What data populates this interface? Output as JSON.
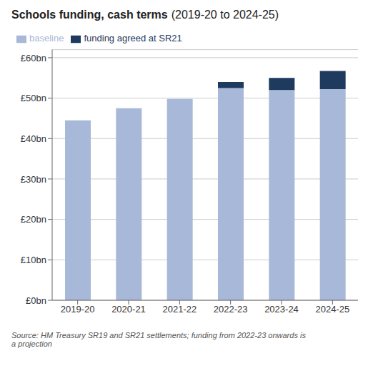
{
  "chart_data": {
    "type": "bar",
    "title": "Schools funding, cash terms",
    "subtitle": "(2019-20 to 2024-25)",
    "categories": [
      "2019-20",
      "2020-21",
      "2021-22",
      "2022-23",
      "2023-24",
      "2024-25"
    ],
    "series": [
      {
        "name": "baseline",
        "color": "#a8b8d8",
        "values": [
          44.5,
          47.5,
          49.8,
          52.5,
          52.0,
          52.2
        ]
      },
      {
        "name": "funding agreed at SR21",
        "color": "#1e3a5f",
        "values": [
          0,
          0,
          0,
          1.5,
          3.0,
          4.5
        ]
      }
    ],
    "stacked": true,
    "ylim": [
      0,
      62
    ],
    "yticks": [
      {
        "value": 0,
        "label": "£0bn"
      },
      {
        "value": 10,
        "label": "£10bn"
      },
      {
        "value": 20,
        "label": "£20bn"
      },
      {
        "value": 30,
        "label": "£30bn"
      },
      {
        "value": 40,
        "label": "£40bn"
      },
      {
        "value": 50,
        "label": "£50bn"
      },
      {
        "value": 60,
        "label": "£60bn"
      }
    ],
    "grid": true,
    "legend": "top",
    "annotations": [
      "Source: HM Treasury SR19 and SR21 settlements; funding from 2022-23 onwards is\na projection"
    ]
  }
}
